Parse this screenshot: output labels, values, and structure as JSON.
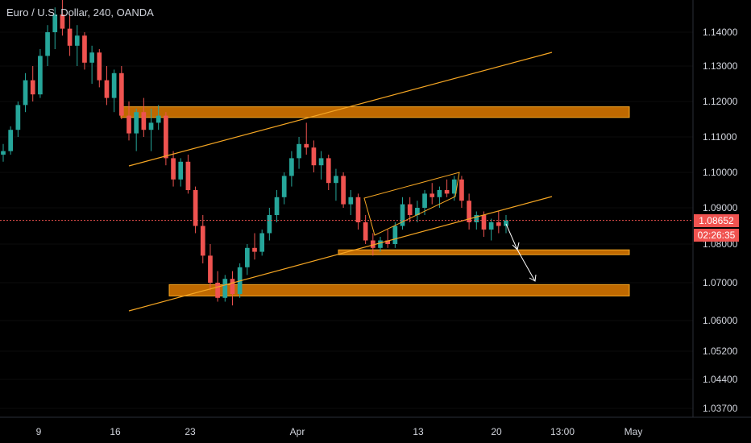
{
  "header": {
    "title": "Euro / U.S. Dollar, 240, OANDA"
  },
  "price_axis": {
    "current_price": "1.08652",
    "countdown": "02:26:35"
  },
  "colors": {
    "bull": "#26a69a",
    "bear": "#ef5350",
    "zone_fill": "#e07b00",
    "zone_line": "#f5a623",
    "trendline": "#f5a623",
    "arrow": "#ffffff",
    "axis_text": "#d1d4dc",
    "price_tag": "#f05350"
  },
  "chart_data": {
    "type": "candlestick",
    "yticks": [
      "1.14000",
      "1.13000",
      "1.12000",
      "1.11000",
      "1.10000",
      "1.09000",
      "1.08000",
      "1.07000",
      "1.06000",
      "1.05200",
      "1.04400",
      "1.03700"
    ],
    "xticks": [
      "9",
      "16",
      "23",
      "Apr",
      "13",
      "20",
      "13:00",
      "May"
    ],
    "current_price": 1.08652,
    "zones": [
      {
        "from": 1.1155,
        "to": 1.1185
      },
      {
        "from": 1.0775,
        "to": 1.0785
      },
      {
        "from": 1.0665,
        "to": 1.0695
      }
    ],
    "candles": [
      [
        1.105,
        1.108,
        1.103,
        1.106
      ],
      [
        1.106,
        1.113,
        1.105,
        1.112
      ],
      [
        1.112,
        1.12,
        1.11,
        1.119
      ],
      [
        1.119,
        1.128,
        1.117,
        1.126
      ],
      [
        1.126,
        1.13,
        1.12,
        1.122
      ],
      [
        1.122,
        1.135,
        1.121,
        1.133
      ],
      [
        1.133,
        1.142,
        1.13,
        1.14
      ],
      [
        1.14,
        1.147,
        1.135,
        1.145
      ],
      [
        1.145,
        1.15,
        1.139,
        1.141
      ],
      [
        1.141,
        1.145,
        1.133,
        1.136
      ],
      [
        1.136,
        1.142,
        1.13,
        1.139
      ],
      [
        1.139,
        1.14,
        1.129,
        1.131
      ],
      [
        1.131,
        1.136,
        1.125,
        1.134
      ],
      [
        1.134,
        1.135,
        1.124,
        1.126
      ],
      [
        1.126,
        1.13,
        1.119,
        1.121
      ],
      [
        1.121,
        1.129,
        1.117,
        1.128
      ],
      [
        1.128,
        1.13,
        1.115,
        1.116
      ],
      [
        1.116,
        1.12,
        1.109,
        1.111
      ],
      [
        1.111,
        1.118,
        1.106,
        1.117
      ],
      [
        1.117,
        1.121,
        1.11,
        1.112
      ],
      [
        1.112,
        1.118,
        1.106,
        1.114
      ],
      [
        1.114,
        1.119,
        1.112,
        1.116
      ],
      [
        1.116,
        1.117,
        1.102,
        1.104
      ],
      [
        1.104,
        1.106,
        1.096,
        1.098
      ],
      [
        1.098,
        1.104,
        1.096,
        1.103
      ],
      [
        1.103,
        1.105,
        1.094,
        1.095
      ],
      [
        1.095,
        1.096,
        1.083,
        1.085
      ],
      [
        1.085,
        1.088,
        1.075,
        1.077
      ],
      [
        1.077,
        1.08,
        1.068,
        1.07
      ],
      [
        1.07,
        1.073,
        1.065,
        1.066
      ],
      [
        1.066,
        1.072,
        1.065,
        1.071
      ],
      [
        1.071,
        1.073,
        1.064,
        1.067
      ],
      [
        1.067,
        1.075,
        1.066,
        1.074
      ],
      [
        1.074,
        1.08,
        1.072,
        1.079
      ],
      [
        1.079,
        1.083,
        1.076,
        1.078
      ],
      [
        1.078,
        1.084,
        1.077,
        1.083
      ],
      [
        1.083,
        1.09,
        1.081,
        1.088
      ],
      [
        1.088,
        1.095,
        1.086,
        1.093
      ],
      [
        1.093,
        1.1,
        1.091,
        1.099
      ],
      [
        1.099,
        1.106,
        1.096,
        1.104
      ],
      [
        1.104,
        1.11,
        1.101,
        1.108
      ],
      [
        1.108,
        1.114,
        1.105,
        1.107
      ],
      [
        1.107,
        1.109,
        1.1,
        1.102
      ],
      [
        1.102,
        1.106,
        1.098,
        1.104
      ],
      [
        1.104,
        1.105,
        1.095,
        1.097
      ],
      [
        1.097,
        1.101,
        1.092,
        1.099
      ],
      [
        1.099,
        1.1,
        1.09,
        1.091
      ],
      [
        1.091,
        1.095,
        1.088,
        1.093
      ],
      [
        1.093,
        1.094,
        1.084,
        1.086
      ],
      [
        1.086,
        1.088,
        1.08,
        1.081
      ],
      [
        1.081,
        1.083,
        1.077,
        1.079
      ],
      [
        1.079,
        1.082,
        1.078,
        1.081
      ],
      [
        1.081,
        1.084,
        1.079,
        1.08
      ],
      [
        1.08,
        1.086,
        1.079,
        1.085
      ],
      [
        1.085,
        1.093,
        1.084,
        1.091
      ],
      [
        1.091,
        1.093,
        1.086,
        1.088
      ],
      [
        1.088,
        1.092,
        1.086,
        1.09
      ],
      [
        1.09,
        1.095,
        1.088,
        1.094
      ],
      [
        1.094,
        1.097,
        1.091,
        1.093
      ],
      [
        1.093,
        1.096,
        1.09,
        1.095
      ],
      [
        1.095,
        1.098,
        1.093,
        1.094
      ],
      [
        1.094,
        1.099,
        1.092,
        1.098
      ],
      [
        1.098,
        1.099,
        1.09,
        1.092
      ],
      [
        1.092,
        1.094,
        1.084,
        1.086
      ],
      [
        1.086,
        1.089,
        1.084,
        1.088
      ],
      [
        1.088,
        1.089,
        1.082,
        1.084
      ],
      [
        1.084,
        1.087,
        1.081,
        1.086
      ],
      [
        1.086,
        1.089,
        1.083,
        1.085
      ],
      [
        1.085,
        1.088,
        1.083,
        1.0865
      ]
    ]
  }
}
